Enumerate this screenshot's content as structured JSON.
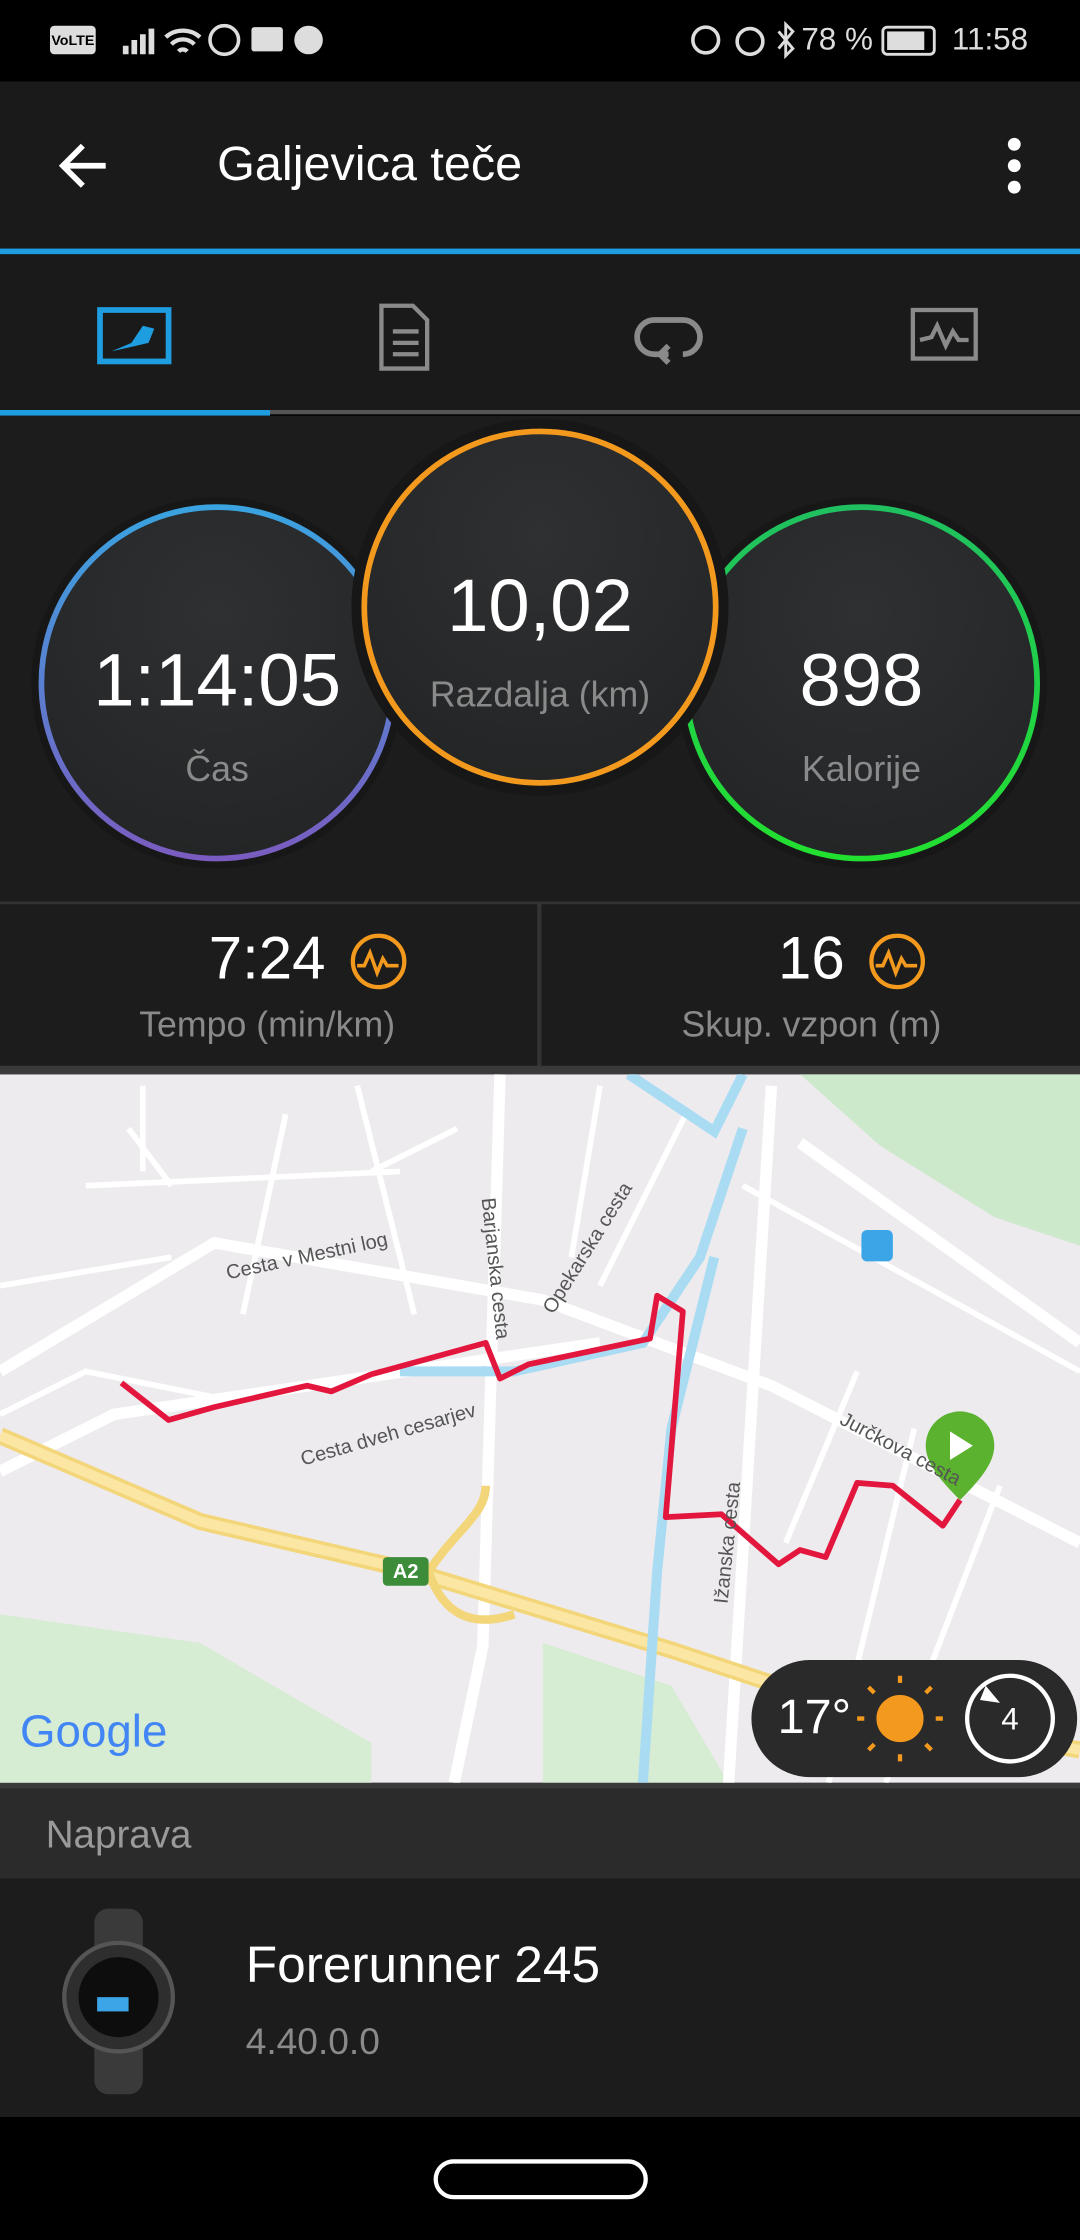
{
  "status_bar": {
    "network": "VoLTE",
    "battery": "78 %",
    "time": "11:58"
  },
  "header": {
    "title": "Galjevica teče"
  },
  "stats": {
    "time": {
      "value": "1:14:05",
      "label": "Čas"
    },
    "distance": {
      "value": "10,02",
      "label": "Razdalja (km)"
    },
    "calories": {
      "value": "898",
      "label": "Kalorije"
    },
    "pace": {
      "value": "7:24",
      "label": "Tempo (min/km)"
    },
    "ascent": {
      "value": "16",
      "label": "Skup. vzpon (m)"
    }
  },
  "map": {
    "streets": [
      "Cesta v Mestni log",
      "Barjanska cesta",
      "Opekarska cesta",
      "Cesta dveh cesarjev",
      "Jurčkova cesta",
      "Ižanska cesta"
    ],
    "highway": "A2",
    "attribution": "Google",
    "weather": {
      "temperature": "17°",
      "wind": "4"
    }
  },
  "device": {
    "section": "Naprava",
    "name": "Forerunner 245",
    "version": "4.40.0.0"
  }
}
